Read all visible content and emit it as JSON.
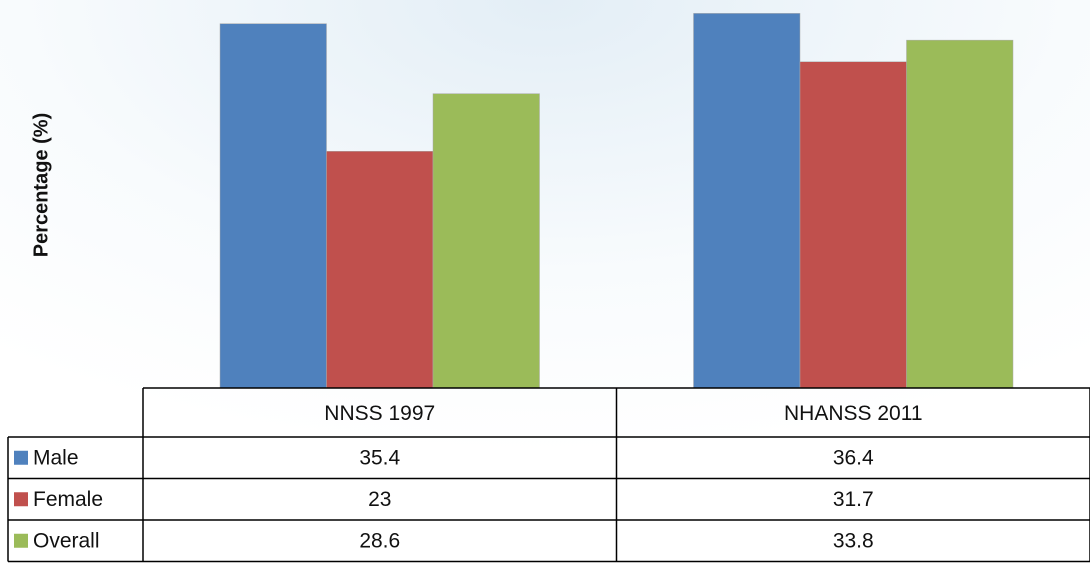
{
  "chart_data": {
    "type": "bar",
    "y_label": "Percentage (%)",
    "categories": [
      "NNSS 1997",
      "NHANSS 2011"
    ],
    "series": [
      {
        "name": "Male",
        "color": "#4f81bd",
        "values": [
          35.4,
          36.4
        ]
      },
      {
        "name": "Female",
        "color": "#c0504d",
        "values": [
          23,
          31.7
        ]
      },
      {
        "name": "Overall",
        "color": "#9bbb59",
        "values": [
          28.6,
          33.8
        ]
      }
    ],
    "ylim": [
      0,
      37.7
    ]
  }
}
